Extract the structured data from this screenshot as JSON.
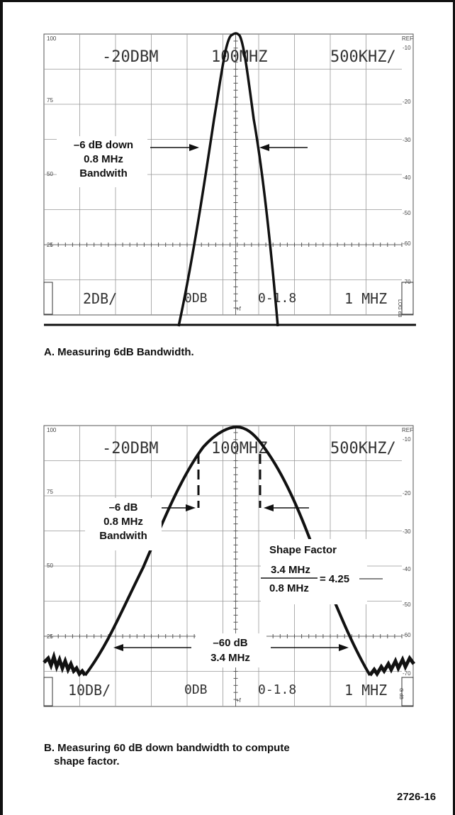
{
  "figure_number": "2726-16",
  "screen_readouts": {
    "ref_level": "-20DBM",
    "center_freq": "100MHZ",
    "span_per_div": "500KHZ/",
    "mode": "0DB",
    "coarse_fine": "0-1.8",
    "resolution_bw": "1 MHZ",
    "top_label": "REF",
    "left_scale_top": "100",
    "left_scale": [
      "75",
      "50",
      "25"
    ],
    "right_scale": [
      "-10",
      "-20",
      "-30",
      "-40",
      "-50",
      "-60",
      "-70"
    ],
    "freq_marker": "+f"
  },
  "panel_a": {
    "vertical_scale": "2DB/",
    "bottom_right_tag": "LOG dB",
    "annotation": {
      "line1": "–6 dB down",
      "line2": "0.8 MHz",
      "line3": "Bandwith"
    },
    "caption": "A. Measuring 6dB Bandwidth."
  },
  "panel_b": {
    "vertical_scale": "10DB/",
    "bottom_right_tag": "G dB",
    "bw6_annotation": {
      "line1": "–6 dB",
      "line2": "0.8 MHz",
      "line3": "Bandwith"
    },
    "shape_factor": {
      "title": "Shape Factor",
      "numerator": "3.4 MHz",
      "denominator": "0.8 MHz",
      "result": "= 4.25"
    },
    "bw60_annotation": {
      "line1": "–60 dB",
      "line2": "3.4 MHz"
    },
    "caption_line1": "B. Measuring 60 dB down bandwidth to compute",
    "caption_line2": "shape factor."
  }
}
